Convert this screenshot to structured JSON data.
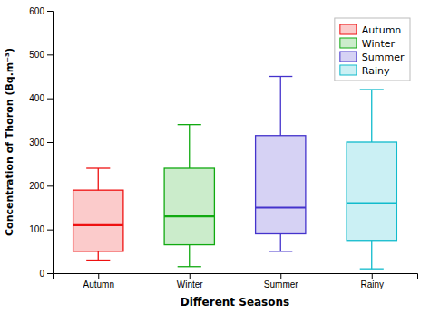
{
  "chart_data": {
    "type": "box",
    "xlabel": "Different Seasons",
    "ylabel": "Concentration of Thoron (Bq.m⁻³)",
    "categories": [
      "Autumn",
      "Winter",
      "Summer",
      "Rainy"
    ],
    "series": [
      {
        "name": "Autumn",
        "color": "#ee1111",
        "whislo": 30,
        "q1": 50,
        "med": 110,
        "q3": 190,
        "whishi": 240
      },
      {
        "name": "Winter",
        "color": "#11aa11",
        "whislo": 15,
        "q1": 65,
        "med": 130,
        "q3": 240,
        "whishi": 340
      },
      {
        "name": "Summer",
        "color": "#4433cc",
        "whislo": 50,
        "q1": 90,
        "med": 150,
        "q3": 315,
        "whishi": 450
      },
      {
        "name": "Rainy",
        "color": "#11bbcc",
        "whislo": 10,
        "q1": 75,
        "med": 160,
        "q3": 300,
        "whishi": 420
      }
    ],
    "ylim": [
      0,
      600
    ],
    "yticks": [
      0,
      100,
      200,
      300,
      400,
      500,
      600
    ],
    "legend": "upper right",
    "grid": false
  }
}
